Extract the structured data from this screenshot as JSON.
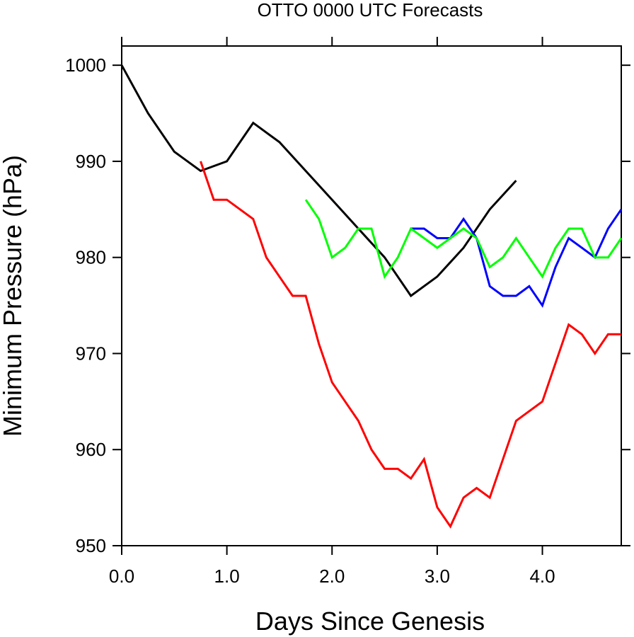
{
  "chart_data": {
    "type": "line",
    "title": "OTTO 0000 UTC Forecasts",
    "xlabel": "Days Since Genesis",
    "ylabel": "Minimum Pressure (hPa)",
    "xlim": [
      0,
      4.75
    ],
    "ylim": [
      950,
      1002
    ],
    "xticks": [
      0,
      1,
      2,
      3,
      4
    ],
    "xtick_labels": [
      "0.0",
      "1.0",
      "2.0",
      "3.0",
      "4.0"
    ],
    "yticks": [
      950,
      960,
      970,
      980,
      990,
      1000
    ],
    "ytick_labels": [
      "950",
      "960",
      "970",
      "980",
      "990",
      "1000"
    ],
    "grid": false,
    "legend": false,
    "series": [
      {
        "color": "#000000",
        "x": [
          0,
          0.25,
          0.5,
          0.75,
          1.0,
          1.25,
          1.5,
          1.75,
          2.0,
          2.25,
          2.5,
          2.75,
          3.0,
          3.25,
          3.5,
          3.75
        ],
        "y": [
          1000,
          995,
          991,
          989,
          990,
          994,
          992,
          989,
          986,
          983,
          980,
          976,
          978,
          981,
          985,
          988
        ]
      },
      {
        "color": "#ff0000",
        "x": [
          0.75,
          0.875,
          1.0,
          1.125,
          1.25,
          1.375,
          1.5,
          1.625,
          1.75,
          1.875,
          2.0,
          2.125,
          2.25,
          2.375,
          2.5,
          2.625,
          2.75,
          2.875,
          3.0,
          3.125,
          3.25,
          3.375,
          3.5,
          3.625,
          3.75,
          3.875,
          4.0,
          4.125,
          4.25,
          4.375,
          4.5,
          4.625,
          4.75
        ],
        "y": [
          990,
          986,
          986,
          985,
          984,
          980,
          978,
          976,
          976,
          971,
          967,
          965,
          963,
          960,
          958,
          958,
          957,
          959,
          954,
          952,
          955,
          956,
          955,
          959,
          963,
          964,
          965,
          969,
          973,
          972,
          970,
          972,
          972
        ]
      },
      {
        "color": "#0000ff",
        "x": [
          2.75,
          2.875,
          3.0,
          3.125,
          3.25,
          3.375,
          3.5,
          3.625,
          3.75,
          3.875,
          4.0,
          4.125,
          4.25,
          4.375,
          4.5,
          4.625,
          4.75
        ],
        "y": [
          983,
          983,
          982,
          982,
          984,
          982,
          977,
          976,
          976,
          977,
          975,
          979,
          982,
          981,
          980,
          983,
          985
        ]
      },
      {
        "color": "#00ff00",
        "x": [
          1.75,
          1.875,
          2.0,
          2.125,
          2.25,
          2.375,
          2.5,
          2.625,
          2.75,
          2.875,
          3.0,
          3.125,
          3.25,
          3.375,
          3.5,
          3.625,
          3.75,
          3.875,
          4.0,
          4.125,
          4.25,
          4.375,
          4.5,
          4.625,
          4.75
        ],
        "y": [
          986,
          984,
          980,
          981,
          983,
          983,
          978,
          980,
          983,
          982,
          981,
          982,
          983,
          982,
          979,
          980,
          982,
          980,
          978,
          981,
          983,
          983,
          980,
          980,
          982
        ]
      }
    ]
  }
}
